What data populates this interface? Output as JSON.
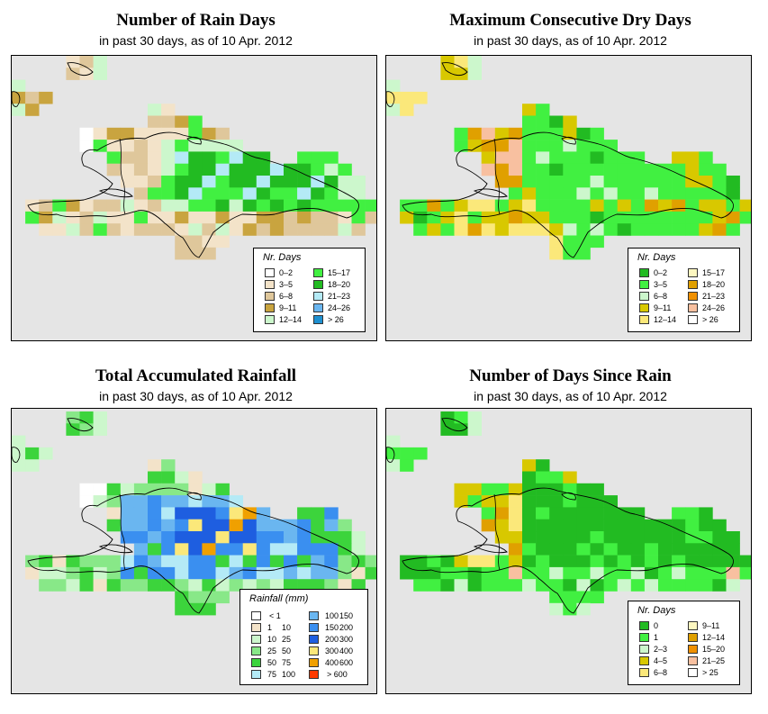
{
  "panels": {
    "p1": {
      "title": "Number of Rain Days",
      "subtitle": "in past 30 days, as of  10 Apr. 2012",
      "legend_title": "Nr. Days",
      "legend": [
        {
          "label": "0–2",
          "color": "#ffffff"
        },
        {
          "label": "3–5",
          "color": "#f3e3c9"
        },
        {
          "label": "6–8",
          "color": "#dfc79b"
        },
        {
          "label": "9–11",
          "color": "#c9a43f"
        },
        {
          "label": "12–14",
          "color": "#ccf7cc"
        },
        {
          "label": "15–17",
          "color": "#41f041"
        },
        {
          "label": "18–20",
          "color": "#22bb22"
        },
        {
          "label": "21–23",
          "color": "#b4eaf6"
        },
        {
          "label": "24–26",
          "color": "#6ab6f0"
        },
        {
          "label": "> 26",
          "color": "#1e90d0"
        }
      ]
    },
    "p2": {
      "title": "Maximum Consecutive Dry Days",
      "subtitle": "in past 30 days, as of  10 Apr. 2012",
      "legend_title": "Nr. Days",
      "legend": [
        {
          "label": "0–2",
          "color": "#22bb22"
        },
        {
          "label": "3–5",
          "color": "#41f041"
        },
        {
          "label": "6–8",
          "color": "#ccf7cc"
        },
        {
          "label": "9–11",
          "color": "#d8c800"
        },
        {
          "label": "12–14",
          "color": "#fbe87a"
        },
        {
          "label": "15–17",
          "color": "#fdf7c0"
        },
        {
          "label": "18–20",
          "color": "#e0a000"
        },
        {
          "label": "21–23",
          "color": "#f09000"
        },
        {
          "label": "24–26",
          "color": "#f8c0a0"
        },
        {
          "label": "> 26",
          "color": "#ffffff"
        }
      ]
    },
    "p3": {
      "title": "Total Accumulated Rainfall",
      "subtitle": "in past 30 days, as of  10 Apr. 2012",
      "legend_title": "Rainfall (mm)",
      "legend": [
        {
          "lo": "< 1",
          "hi": "",
          "color": "#ffffff"
        },
        {
          "lo": "1",
          "hi": "10",
          "color": "#f3e3c9"
        },
        {
          "lo": "10",
          "hi": "25",
          "color": "#ccf7cc"
        },
        {
          "lo": "25",
          "hi": "50",
          "color": "#88e888"
        },
        {
          "lo": "50",
          "hi": "75",
          "color": "#3cd43c"
        },
        {
          "lo": "75",
          "hi": "100",
          "color": "#b4eaf6"
        },
        {
          "lo": "100",
          "hi": "150",
          "color": "#6ab6f0"
        },
        {
          "lo": "150",
          "hi": "200",
          "color": "#3a8ff0"
        },
        {
          "lo": "200",
          "hi": "300",
          "color": "#1e5ee0"
        },
        {
          "lo": "300",
          "hi": "400",
          "color": "#fbe87a"
        },
        {
          "lo": "400",
          "hi": "600",
          "color": "#f0a000"
        },
        {
          "lo": "> 600",
          "hi": "",
          "color": "#ff3a00"
        }
      ]
    },
    "p4": {
      "title": "Number of Days Since Rain",
      "subtitle": "in past 30 days, as of  10 Apr. 2012",
      "legend_title": "Nr. Days",
      "legend": [
        {
          "label": "0",
          "color": "#22bb22"
        },
        {
          "label": "1",
          "color": "#41f041"
        },
        {
          "label": "2–3",
          "color": "#ccf7cc"
        },
        {
          "label": "4–5",
          "color": "#d8c800"
        },
        {
          "label": "6–8",
          "color": "#fbe87a"
        },
        {
          "label": "9–11",
          "color": "#fdf7c0"
        },
        {
          "label": "12–14",
          "color": "#e0a000"
        },
        {
          "label": "15–20",
          "color": "#f09000"
        },
        {
          "label": "21–25",
          "color": "#f8c0a0"
        },
        {
          "label": "> 25",
          "color": "#ffffff"
        }
      ]
    }
  }
}
